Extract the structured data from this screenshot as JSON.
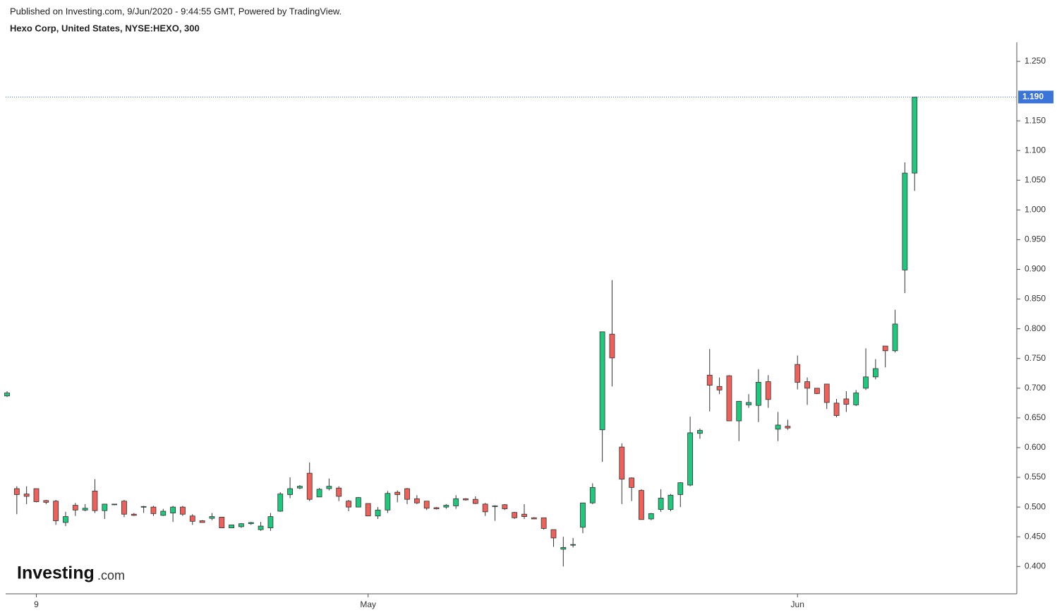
{
  "header": {
    "published": "Published on Investing.com, 9/Jun/2020 - 9:44:55 GMT, Powered by TradingView.",
    "symbol": "Hexo Corp, United States, NYSE:HEXO, 300"
  },
  "logo": {
    "brand": "Investing",
    "suffix": ".com"
  },
  "chart_data": {
    "type": "candlestick",
    "up_color": "#1ec97d",
    "down_color": "#f0605a",
    "edge_color": "#333333",
    "categories": [
      null,
      null,
      null,
      "9",
      null,
      null,
      null,
      null,
      null,
      null,
      null,
      null,
      null,
      null,
      null,
      null,
      null,
      null,
      null,
      null,
      null,
      null,
      null,
      null,
      null,
      null,
      null,
      null,
      null,
      null,
      null,
      null,
      null,
      null,
      null,
      null,
      null,
      "May",
      null,
      null,
      null,
      null,
      null,
      null,
      null,
      null,
      null,
      null,
      null,
      null,
      null,
      null,
      null,
      null,
      null,
      null,
      null,
      null,
      null,
      null,
      null,
      null,
      null,
      null,
      null,
      null,
      null,
      null,
      null,
      null,
      null,
      null,
      null,
      null,
      null,
      null,
      null,
      null,
      null,
      null,
      null,
      "Jun",
      null,
      null,
      null,
      null,
      null,
      null,
      null,
      null,
      null,
      null,
      null,
      null
    ],
    "open": [
      0.687,
      0.531,
      0.522,
      0.531,
      0.511,
      0.51,
      0.474,
      0.503,
      0.495,
      0.527,
      0.494,
      0.504,
      0.51,
      0.488,
      0.5,
      0.5,
      0.486,
      0.49,
      0.5,
      0.485,
      0.477,
      0.481,
      0.483,
      0.465,
      0.467,
      0.472,
      0.462,
      0.465,
      0.493,
      0.521,
      0.532,
      0.557,
      0.517,
      0.531,
      0.532,
      0.51,
      0.5,
      0.506,
      0.485,
      0.495,
      0.525,
      0.531,
      0.514,
      0.51,
      0.499,
      0.5,
      0.502,
      0.514,
      0.513,
      0.505,
      0.502,
      0.504,
      0.491,
      0.488,
      0.482,
      0.482,
      0.462,
      0.429,
      0.436,
      0.466,
      0.507,
      0.63,
      0.791,
      0.601,
      0.549,
      0.528,
      0.48,
      0.496,
      0.496,
      0.521,
      0.537,
      0.624,
      0.722,
      0.703,
      0.721,
      0.645,
      0.672,
      0.671,
      0.711,
      0.631,
      0.636,
      0.74,
      0.711,
      0.7,
      0.707,
      0.675,
      0.682,
      0.672,
      0.7,
      0.719,
      0.771,
      0.763,
      0.899,
      1.062
    ],
    "high": [
      0.695,
      0.535,
      0.535,
      0.531,
      0.512,
      0.512,
      0.492,
      0.507,
      0.505,
      0.547,
      0.505,
      0.505,
      0.512,
      0.49,
      0.502,
      0.502,
      0.497,
      0.502,
      0.502,
      0.488,
      0.478,
      0.49,
      0.483,
      0.47,
      0.473,
      0.475,
      0.475,
      0.49,
      0.525,
      0.55,
      0.537,
      0.575,
      0.532,
      0.548,
      0.535,
      0.512,
      0.517,
      0.506,
      0.5,
      0.527,
      0.528,
      0.532,
      0.52,
      0.51,
      0.5,
      0.505,
      0.52,
      0.515,
      0.518,
      0.507,
      0.503,
      0.505,
      0.492,
      0.505,
      0.483,
      0.482,
      0.462,
      0.45,
      0.448,
      0.505,
      0.54,
      0.795,
      0.882,
      0.607,
      0.55,
      0.53,
      0.49,
      0.53,
      0.522,
      0.542,
      0.652,
      0.632,
      0.766,
      0.718,
      0.722,
      0.678,
      0.69,
      0.732,
      0.722,
      0.66,
      0.647,
      0.755,
      0.718,
      0.7,
      0.707,
      0.682,
      0.695,
      0.697,
      0.767,
      0.749,
      0.771,
      0.832,
      1.08,
      1.19
    ],
    "low": [
      0.685,
      0.488,
      0.505,
      0.508,
      0.505,
      0.47,
      0.468,
      0.485,
      0.493,
      0.49,
      0.48,
      0.503,
      0.483,
      0.485,
      0.49,
      0.485,
      0.485,
      0.475,
      0.485,
      0.47,
      0.474,
      0.478,
      0.465,
      0.465,
      0.465,
      0.47,
      0.46,
      0.46,
      0.492,
      0.515,
      0.53,
      0.51,
      0.517,
      0.528,
      0.51,
      0.493,
      0.5,
      0.485,
      0.48,
      0.49,
      0.508,
      0.505,
      0.505,
      0.495,
      0.496,
      0.497,
      0.497,
      0.511,
      0.505,
      0.485,
      0.477,
      0.495,
      0.48,
      0.48,
      0.48,
      0.462,
      0.433,
      0.4,
      0.432,
      0.456,
      0.505,
      0.576,
      0.703,
      0.505,
      0.51,
      0.48,
      0.478,
      0.492,
      0.493,
      0.5,
      0.535,
      0.615,
      0.661,
      0.69,
      0.645,
      0.611,
      0.667,
      0.643,
      0.667,
      0.611,
      0.63,
      0.698,
      0.672,
      0.69,
      0.665,
      0.651,
      0.66,
      0.67,
      0.697,
      0.715,
      0.735,
      0.76,
      0.86,
      1.032
    ],
    "close": [
      0.692,
      0.521,
      0.518,
      0.509,
      0.508,
      0.477,
      0.484,
      0.495,
      0.498,
      0.494,
      0.505,
      0.505,
      0.488,
      0.486,
      0.501,
      0.489,
      0.493,
      0.5,
      0.488,
      0.476,
      0.474,
      0.484,
      0.465,
      0.47,
      0.472,
      0.474,
      0.468,
      0.484,
      0.522,
      0.531,
      0.535,
      0.513,
      0.53,
      0.535,
      0.518,
      0.5,
      0.516,
      0.485,
      0.495,
      0.523,
      0.521,
      0.513,
      0.507,
      0.498,
      0.497,
      0.503,
      0.514,
      0.512,
      0.506,
      0.492,
      0.502,
      0.497,
      0.482,
      0.484,
      0.48,
      0.464,
      0.448,
      0.432,
      0.437,
      0.507,
      0.533,
      0.795,
      0.751,
      0.547,
      0.533,
      0.479,
      0.489,
      0.515,
      0.52,
      0.541,
      0.625,
      0.629,
      0.705,
      0.697,
      0.645,
      0.678,
      0.676,
      0.71,
      0.681,
      0.638,
      0.633,
      0.71,
      0.7,
      0.691,
      0.676,
      0.654,
      0.673,
      0.692,
      0.719,
      0.733,
      0.763,
      0.808,
      1.062,
      1.19
    ],
    "ylim": [
      0.354,
      1.282
    ],
    "yticks": [
      {
        "value": 0.4,
        "label": "0.400"
      },
      {
        "value": 0.45,
        "label": "0.450"
      },
      {
        "value": 0.5,
        "label": "0.500"
      },
      {
        "value": 0.55,
        "label": "0.550"
      },
      {
        "value": 0.6,
        "label": "0.600"
      },
      {
        "value": 0.65,
        "label": "0.650"
      },
      {
        "value": 0.7,
        "label": "0.700"
      },
      {
        "value": 0.75,
        "label": "0.750"
      },
      {
        "value": 0.8,
        "label": "0.800"
      },
      {
        "value": 0.85,
        "label": "0.850"
      },
      {
        "value": 0.9,
        "label": "0.900"
      },
      {
        "value": 0.95,
        "label": "0.950"
      },
      {
        "value": 1.0,
        "label": "1.000"
      },
      {
        "value": 1.05,
        "label": "1.050"
      },
      {
        "value": 1.1,
        "label": "1.100"
      },
      {
        "value": 1.15,
        "label": "1.150"
      },
      {
        "value": 1.25,
        "label": "1.250"
      }
    ],
    "last_price": {
      "value": 1.19,
      "label": "1.190"
    },
    "last_price_color": "#3b74d9"
  }
}
